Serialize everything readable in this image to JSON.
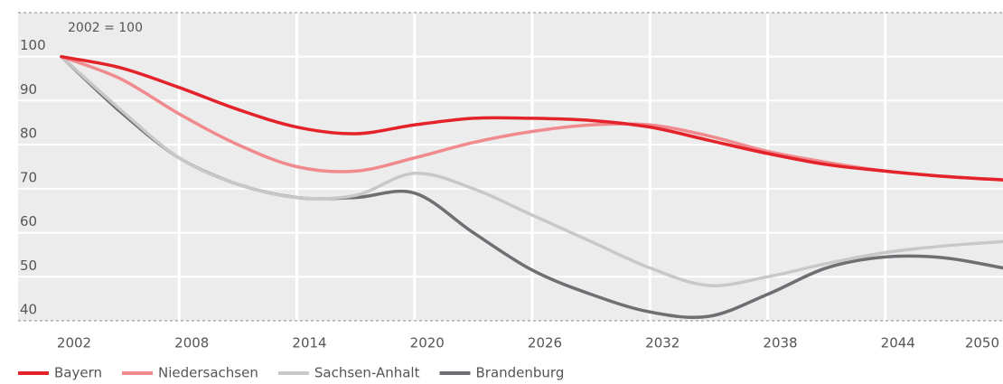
{
  "chart_data": {
    "type": "line",
    "annotation": "2002 = 100",
    "x": [
      2002,
      2005,
      2008,
      2011,
      2014,
      2017,
      2020,
      2023,
      2026,
      2029,
      2032,
      2035,
      2038,
      2041,
      2044,
      2047,
      2050
    ],
    "series": [
      {
        "name": "Bayern",
        "color": "#e3222a",
        "values": [
          100,
          97.5,
          93,
          88,
          84,
          82.5,
          84.5,
          86,
          86,
          85.5,
          84,
          81,
          78,
          75.5,
          74,
          72.8,
          72
        ]
      },
      {
        "name": "Niedersachsen",
        "color": "#f08a8e",
        "values": [
          100,
          95,
          87,
          80,
          75,
          74,
          77,
          80.5,
          83,
          84.5,
          84.5,
          82,
          78.5,
          76,
          74,
          72.8,
          72
        ]
      },
      {
        "name": "Sachsen-Anhalt",
        "color": "#c8c8c8",
        "values": [
          100,
          88,
          77,
          71,
          68,
          68.5,
          73.5,
          70,
          64,
          58,
          52,
          48,
          50,
          53,
          55.5,
          57,
          58
        ]
      },
      {
        "name": "Brandenburg",
        "color": "#6e6e73",
        "values": [
          100,
          87.5,
          77,
          71,
          68,
          68,
          69,
          60,
          51.5,
          46,
          42,
          41,
          46,
          52,
          54.5,
          54.3,
          52
        ]
      }
    ],
    "xlim": [
      2002,
      2050
    ],
    "xticks": [
      2002,
      2008,
      2014,
      2020,
      2026,
      2032,
      2038,
      2044,
      2050
    ],
    "ylim": [
      40,
      110
    ],
    "yticks": [
      40,
      50,
      60,
      70,
      80,
      90,
      100
    ],
    "grid": true,
    "legend": "bottom"
  }
}
